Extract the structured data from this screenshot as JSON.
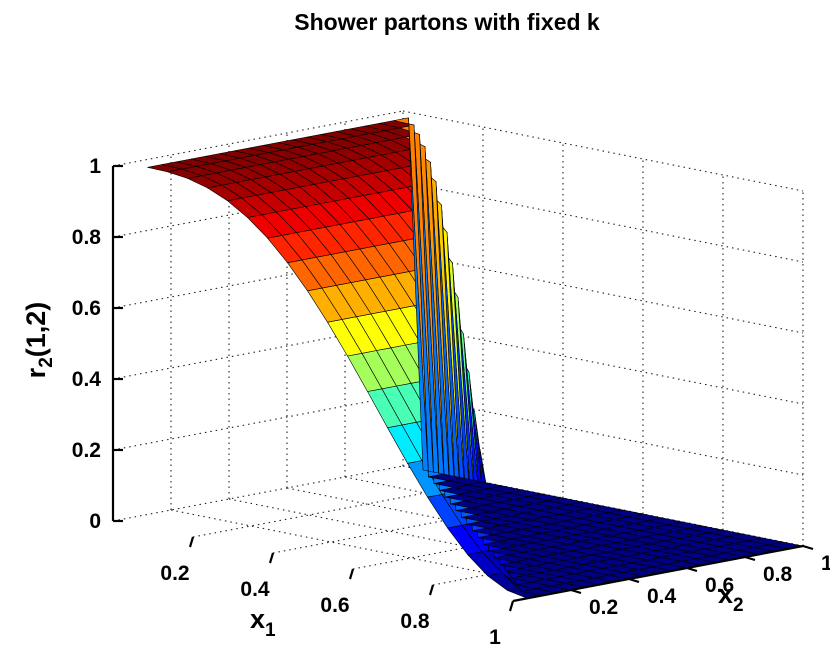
{
  "chart_data": {
    "type": "surface",
    "title": "Shower partons with fixed k",
    "xlabel": "x",
    "xlabel_sub": "1",
    "ylabel": "x",
    "ylabel_sub": "2",
    "zlabel": "r",
    "zlabel_sub": "2",
    "zlabel_suffix": "(1,2)",
    "xlim": [
      0,
      1
    ],
    "ylim": [
      0,
      1
    ],
    "zlim": [
      0,
      1
    ],
    "x_ticks": [
      "0.2",
      "0.4",
      "0.6",
      "0.8",
      "1"
    ],
    "y_ticks": [
      "0.2",
      "0.4",
      "0.6",
      "0.8",
      "1"
    ],
    "z_ticks": [
      "0",
      "0.2",
      "0.4",
      "0.6",
      "0.8",
      "1"
    ],
    "colormap": "jet",
    "grid": true,
    "surface": {
      "domain": "x1 + x2 <= 1 (zero elsewhere)",
      "x1": [
        0.05,
        0.1,
        0.15,
        0.2,
        0.25,
        0.3,
        0.35,
        0.4,
        0.45,
        0.5,
        0.55,
        0.6,
        0.65,
        0.7,
        0.75,
        0.8,
        0.85,
        0.9,
        0.95,
        1.0
      ],
      "x2": [
        0.05,
        0.1,
        0.15,
        0.2,
        0.25,
        0.3,
        0.35,
        0.4,
        0.45,
        0.5,
        0.55,
        0.6,
        0.65,
        0.7,
        0.75,
        0.8,
        0.85,
        0.9,
        0.95,
        1.0
      ],
      "peak_value": 1.0,
      "peak_at": [
        0.05,
        0.05
      ],
      "value_at_x1_equals_1": 0.0
    }
  }
}
